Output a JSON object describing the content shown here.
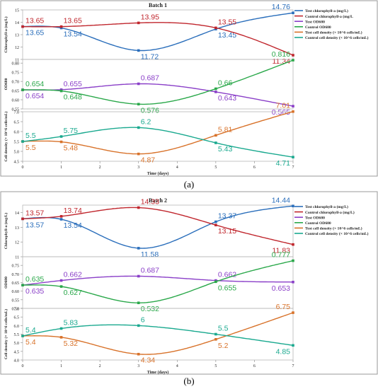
{
  "chart_data": [
    {
      "type": "line",
      "title": "Batch 1",
      "xlabel": "Time (days)",
      "x": [
        0,
        1,
        3,
        5,
        7
      ],
      "xticks": [
        "0",
        "1",
        "2",
        "3",
        "4",
        "5",
        "6",
        "7"
      ],
      "caption": "(a)",
      "legend_position": "right",
      "panels": [
        {
          "ylabel": "Chlorophyll-a (mg/L)",
          "ylim": [
            11,
            15
          ],
          "yticks": [
            "11",
            "12",
            "13",
            "14",
            "15"
          ],
          "series": [
            {
              "name": "Test chlorophyll-a (mg/L)",
              "color": "#2a6ebb",
              "values": [
                13.65,
                13.54,
                11.72,
                13.45,
                14.76
              ],
              "labels": [
                "13.65",
                "13.54",
                "11.72",
                "13.45",
                "14.76"
              ]
            },
            {
              "name": "Control chlorophyll-a (mg/L",
              "color": "#c0262d",
              "values": [
                13.65,
                13.65,
                13.95,
                13.55,
                11.34
              ],
              "labels": [
                "13.65",
                "13.65",
                "13.95",
                "13.55",
                "11.34"
              ]
            }
          ]
        },
        {
          "ylabel": "OD680",
          "ylim": [
            0.55,
            0.82
          ],
          "yticks": [
            "0.55",
            "0.60",
            "0.65",
            "0.70",
            "0.75",
            "0.80"
          ],
          "series": [
            {
              "name": "Test OD680",
              "color": "#8a3fc8",
              "values": [
                0.654,
                0.655,
                0.687,
                0.643,
                0.565
              ],
              "labels": [
                "0.654",
                "0.655",
                "0.687",
                "0.643",
                "0.565"
              ]
            },
            {
              "name": "Control OD680",
              "color": "#2aa84a",
              "values": [
                0.654,
                0.648,
                0.576,
                0.66,
                0.816
              ],
              "labels": [
                "0.654",
                "0.648",
                "0.576",
                "0.66",
                "0.816"
              ]
            }
          ]
        },
        {
          "ylabel": "Cell density (× 10^6 cells/mL)",
          "ylim": [
            4.5,
            7.0
          ],
          "yticks": [
            "4.5",
            "5.0",
            "5.5",
            "6.0",
            "6.5",
            "7.0"
          ],
          "series": [
            {
              "name": "Test cell density (× 10^6 cells/mL)",
              "color": "#d8722a",
              "values": [
                5.5,
                5.48,
                4.87,
                5.81,
                7.01
              ],
              "labels": [
                "5.5",
                "5.48",
                "4.87",
                "5.81",
                "7.01"
              ]
            },
            {
              "name": "Control cell density (× 10^6 cells/mL)",
              "color": "#1aa98f",
              "values": [
                5.5,
                5.75,
                6.2,
                5.43,
                4.71
              ],
              "labels": [
                "5.5",
                "5.75",
                "6.2",
                "5.43",
                "4.71"
              ]
            }
          ]
        }
      ]
    },
    {
      "type": "line",
      "title": "Batch 2",
      "xlabel": "Time (days)",
      "x": [
        0,
        1,
        3,
        5,
        7
      ],
      "xticks": [
        "0",
        "1",
        "2",
        "3",
        "4",
        "5",
        "6",
        "7"
      ],
      "caption": "(b)",
      "legend_position": "right",
      "panels": [
        {
          "ylabel": "Chlorophyll-a (mg/L)",
          "ylim": [
            11,
            14.5
          ],
          "yticks": [
            "11",
            "12",
            "13",
            "14"
          ],
          "series": [
            {
              "name": "Test chlorophyll-a (mg/L)",
              "color": "#2a6ebb",
              "values": [
                13.57,
                13.54,
                11.58,
                13.37,
                14.44
              ],
              "labels": [
                "13.57",
                "13.54",
                "11.58",
                "13.37",
                "14.44"
              ]
            },
            {
              "name": "Control chlorophyll-a (mg/L)",
              "color": "#c0262d",
              "values": [
                13.57,
                13.74,
                14.33,
                13.15,
                11.83
              ],
              "labels": [
                "13.57",
                "13.74",
                "14.33",
                "13.15",
                "11.83"
              ]
            }
          ]
        },
        {
          "ylabel": "OD680",
          "ylim": [
            0.5,
            0.8
          ],
          "yticks": [
            "0.50",
            "0.55",
            "0.60",
            "0.65",
            "0.70",
            "0.75"
          ],
          "series": [
            {
              "name": "Test OD680",
              "color": "#8a3fc8",
              "values": [
                0.635,
                0.662,
                0.687,
                0.662,
                0.653
              ],
              "labels": [
                "0.635",
                "0.662",
                "0.687",
                "0.662",
                "0.653"
              ]
            },
            {
              "name": "Control OD680",
              "color": "#2aa84a",
              "values": [
                0.635,
                0.627,
                0.532,
                0.655,
                0.777
              ],
              "labels": [
                "0.635",
                "0.627",
                "0.532",
                "0.655",
                "0.777"
              ]
            }
          ]
        },
        {
          "ylabel": "Cell density (× 10^6 cells/mL)",
          "ylim": [
            4.0,
            7.0
          ],
          "yticks": [
            "4.0",
            "4.5",
            "5.0",
            "5.5",
            "6.0",
            "6.5",
            "7.0"
          ],
          "series": [
            {
              "name": "Test cell density (× 10^6 cells/mL)",
              "color": "#d8722a",
              "values": [
                5.4,
                5.32,
                4.34,
                5.2,
                6.75
              ],
              "labels": [
                "5.4",
                "5.32",
                "4.34",
                "5.2",
                "6.75"
              ]
            },
            {
              "name": "Control cell density (× 10^6 cells/mL)",
              "color": "#1aa98f",
              "values": [
                5.4,
                5.83,
                6.0,
                5.5,
                4.85
              ],
              "labels": [
                "5.4",
                "5.83",
                "6",
                "5.5",
                "4.85"
              ]
            }
          ]
        }
      ]
    }
  ]
}
